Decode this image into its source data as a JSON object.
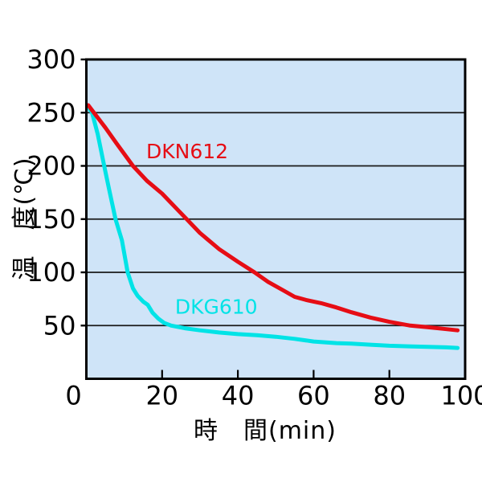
{
  "figure": {
    "background": "#ffffff"
  },
  "chart_data": {
    "type": "line",
    "title": "",
    "xlabel": "時　間(min)",
    "ylabel": "温　度(℃)",
    "xlim": [
      0,
      100
    ],
    "ylim": [
      0,
      300
    ],
    "x_ticks": [
      0,
      20,
      40,
      60,
      80,
      100
    ],
    "y_ticks": [
      300,
      250,
      200,
      150,
      100,
      50
    ],
    "y_gridlines": [
      250,
      200,
      150,
      100,
      50
    ],
    "grid": "horizontal-only",
    "legend_position": "inline-curve-labels",
    "colors": {
      "plot_bg": "#cfe4f8",
      "grid": "#1a1a1a",
      "axis": "#000000",
      "tick_text": "#000000"
    },
    "series": [
      {
        "name": "DKG610",
        "color": "#00e3e6",
        "label_x": 23.4,
        "label_y": 75.4,
        "points": [
          [
            0.5,
            255
          ],
          [
            1.5,
            250
          ],
          [
            3,
            230
          ],
          [
            4.7,
            200
          ],
          [
            6,
            178
          ],
          [
            7.7,
            150
          ],
          [
            9.4,
            130
          ],
          [
            10.9,
            100
          ],
          [
            12.3,
            85
          ],
          [
            13.5,
            78
          ],
          [
            15,
            72.5
          ],
          [
            16.2,
            69.5
          ],
          [
            17.5,
            62
          ],
          [
            19,
            56.5
          ],
          [
            20.5,
            52.5
          ],
          [
            22.4,
            50
          ],
          [
            26,
            47.5
          ],
          [
            30,
            45.5
          ],
          [
            35,
            43.5
          ],
          [
            40,
            42
          ],
          [
            45,
            41
          ],
          [
            50,
            39.5
          ],
          [
            55,
            37.5
          ],
          [
            60,
            35
          ],
          [
            66,
            33.5
          ],
          [
            70,
            33
          ],
          [
            75,
            32
          ],
          [
            80,
            31
          ],
          [
            85,
            30.5
          ],
          [
            90,
            30
          ],
          [
            95,
            29.5
          ],
          [
            98,
            29
          ]
        ]
      },
      {
        "name": "DKN612",
        "color": "#e60d15",
        "label_x": 15.8,
        "label_y": 221.6,
        "points": [
          [
            0.5,
            257
          ],
          [
            2,
            250
          ],
          [
            5,
            236
          ],
          [
            8,
            221
          ],
          [
            12.3,
            200
          ],
          [
            16,
            186
          ],
          [
            20,
            174
          ],
          [
            23.5,
            161
          ],
          [
            26.5,
            150
          ],
          [
            30,
            137
          ],
          [
            35,
            122
          ],
          [
            40,
            110
          ],
          [
            44.4,
            100
          ],
          [
            48,
            91
          ],
          [
            52,
            83
          ],
          [
            55,
            77
          ],
          [
            58,
            74
          ],
          [
            62,
            71
          ],
          [
            66,
            67
          ],
          [
            70,
            62.5
          ],
          [
            75,
            57.5
          ],
          [
            80,
            53.5
          ],
          [
            85.5,
            50
          ],
          [
            90,
            48.5
          ],
          [
            94,
            47
          ],
          [
            98,
            45.5
          ]
        ]
      }
    ]
  }
}
